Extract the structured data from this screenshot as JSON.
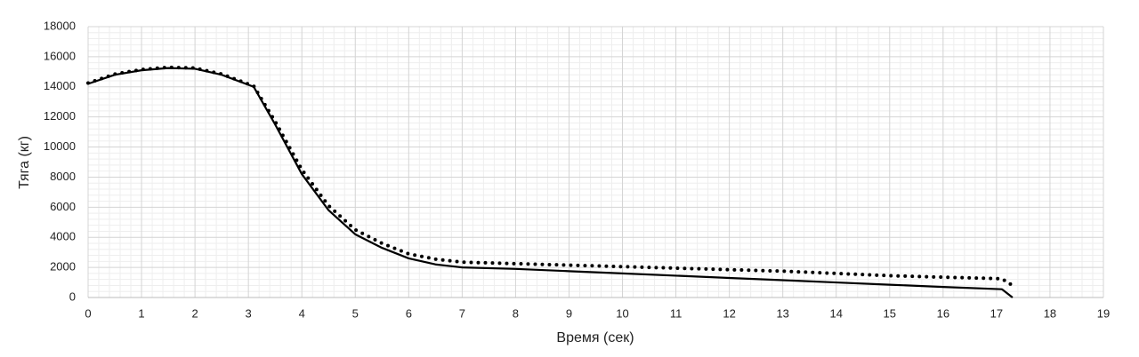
{
  "chart_data": {
    "type": "line",
    "xlabel": "Время (сек)",
    "ylabel": "Тяга (кг)",
    "xlim": [
      0,
      19
    ],
    "xticks": [
      0,
      1,
      2,
      3,
      4,
      5,
      6,
      7,
      8,
      9,
      10,
      11,
      12,
      13,
      14,
      15,
      16,
      17,
      18,
      19
    ],
    "ylim": [
      0,
      18000
    ],
    "yticks": [
      0,
      2000,
      4000,
      6000,
      8000,
      10000,
      12000,
      14000,
      16000,
      18000
    ],
    "grid": true,
    "minor_grid_divisions": 5,
    "series": [
      {
        "color": "#000000",
        "style": "solid",
        "x": [
          0,
          0.5,
          1,
          1.5,
          2,
          2.5,
          3.1,
          3.5,
          4,
          4.5,
          5,
          5.5,
          6,
          6.5,
          7,
          8,
          9,
          10,
          11,
          12,
          13,
          14,
          15,
          16,
          17.1,
          17.3
        ],
        "values": [
          14200,
          14800,
          15100,
          15250,
          15200,
          14800,
          14000,
          11500,
          8200,
          5800,
          4200,
          3300,
          2600,
          2200,
          2000,
          1900,
          1750,
          1600,
          1450,
          1300,
          1150,
          1000,
          850,
          700,
          550,
          0
        ]
      },
      {
        "color": "#000000",
        "style": "dotted",
        "x": [
          0,
          0.5,
          1,
          1.5,
          2,
          2.5,
          3.1,
          3.5,
          4,
          4.5,
          5,
          5.5,
          6,
          6.5,
          7,
          8,
          9,
          10,
          11,
          12,
          13,
          14,
          15,
          16,
          17.1,
          17.3
        ],
        "values": [
          14250,
          14850,
          15150,
          15300,
          15250,
          14850,
          14050,
          11700,
          8500,
          6100,
          4500,
          3600,
          2900,
          2550,
          2350,
          2250,
          2150,
          2050,
          1950,
          1850,
          1750,
          1600,
          1450,
          1350,
          1250,
          800
        ]
      }
    ]
  }
}
